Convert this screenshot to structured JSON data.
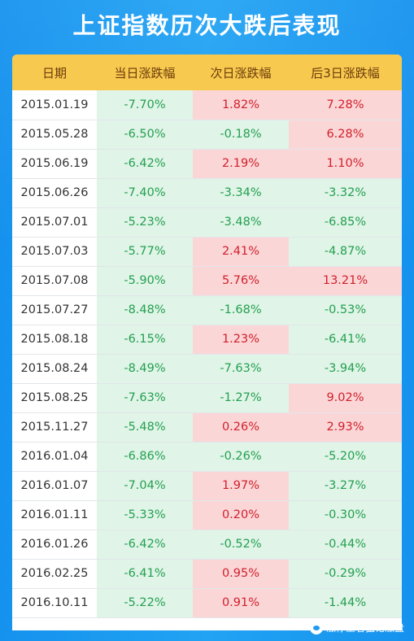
{
  "title": "上证指数历次大跌后表现",
  "columns": [
    "日期",
    "当日涨跌幅",
    "次日涨跌幅",
    "后3日涨跌幅"
  ],
  "rows": [
    [
      "2015.01.19",
      "-7.70%",
      "1.82%",
      "7.28%"
    ],
    [
      "2015.05.28",
      "-6.50%",
      "-0.18%",
      "6.28%"
    ],
    [
      "2015.06.19",
      "-6.42%",
      "2.19%",
      "1.10%"
    ],
    [
      "2015.06.26",
      "-7.40%",
      "-3.34%",
      "-3.32%"
    ],
    [
      "2015.07.01",
      "-5.23%",
      "-3.48%",
      "-6.85%"
    ],
    [
      "2015.07.03",
      "-5.77%",
      "2.41%",
      "-4.87%"
    ],
    [
      "2015.07.08",
      "-5.90%",
      "5.76%",
      "13.21%"
    ],
    [
      "2015.07.27",
      "-8.48%",
      "-1.68%",
      "-0.53%"
    ],
    [
      "2015.08.18",
      "-6.15%",
      "1.23%",
      "-6.41%"
    ],
    [
      "2015.08.24",
      "-8.49%",
      "-7.63%",
      "-3.94%"
    ],
    [
      "2015.08.25",
      "-7.63%",
      "-1.27%",
      "9.02%"
    ],
    [
      "2015.11.27",
      "-5.48%",
      "0.26%",
      "2.93%"
    ],
    [
      "2016.01.04",
      "-6.86%",
      "-0.26%",
      "-5.20%"
    ],
    [
      "2016.01.07",
      "-7.04%",
      "1.97%",
      "-3.27%"
    ],
    [
      "2016.01.11",
      "-5.33%",
      "0.20%",
      "-0.30%"
    ],
    [
      "2016.01.26",
      "-6.42%",
      "-0.52%",
      "-0.44%"
    ],
    [
      "2016.02.25",
      "-6.41%",
      "0.95%",
      "-0.29%"
    ],
    [
      "2016.10.11",
      "-5.22%",
      "0.91%",
      "-1.44%"
    ]
  ],
  "watermark": "涨停王者猛论涨盘",
  "colors": {
    "up": "#d11f2a",
    "up_bg": "#fbd6d7",
    "down": "#23a04f",
    "down_bg": "#e0f4e8",
    "header_bg": "#f8c94f"
  },
  "chart_data": {
    "type": "table",
    "title": "上证指数历次大跌后表现",
    "columns": [
      "日期",
      "当日涨跌幅",
      "次日涨跌幅",
      "后3日涨跌幅"
    ],
    "categories": [
      "2015.01.19",
      "2015.05.28",
      "2015.06.19",
      "2015.06.26",
      "2015.07.01",
      "2015.07.03",
      "2015.07.08",
      "2015.07.27",
      "2015.08.18",
      "2015.08.24",
      "2015.08.25",
      "2015.11.27",
      "2016.01.04",
      "2016.01.07",
      "2016.01.11",
      "2016.01.26",
      "2016.02.25",
      "2016.10.11"
    ],
    "series": [
      {
        "name": "当日涨跌幅",
        "values": [
          -7.7,
          -6.5,
          -6.42,
          -7.4,
          -5.23,
          -5.77,
          -5.9,
          -8.48,
          -6.15,
          -8.49,
          -7.63,
          -5.48,
          -6.86,
          -7.04,
          -5.33,
          -6.42,
          -6.41,
          -5.22
        ]
      },
      {
        "name": "次日涨跌幅",
        "values": [
          1.82,
          -0.18,
          2.19,
          -3.34,
          -3.48,
          2.41,
          5.76,
          -1.68,
          1.23,
          -7.63,
          -1.27,
          0.26,
          -0.26,
          1.97,
          0.2,
          -0.52,
          0.95,
          0.91
        ]
      },
      {
        "name": "后3日涨跌幅",
        "values": [
          7.28,
          6.28,
          1.1,
          -3.32,
          -6.85,
          -4.87,
          13.21,
          -0.53,
          -6.41,
          -3.94,
          9.02,
          2.93,
          -5.2,
          -3.27,
          -0.3,
          -0.44,
          -0.29,
          -1.44
        ]
      }
    ]
  }
}
